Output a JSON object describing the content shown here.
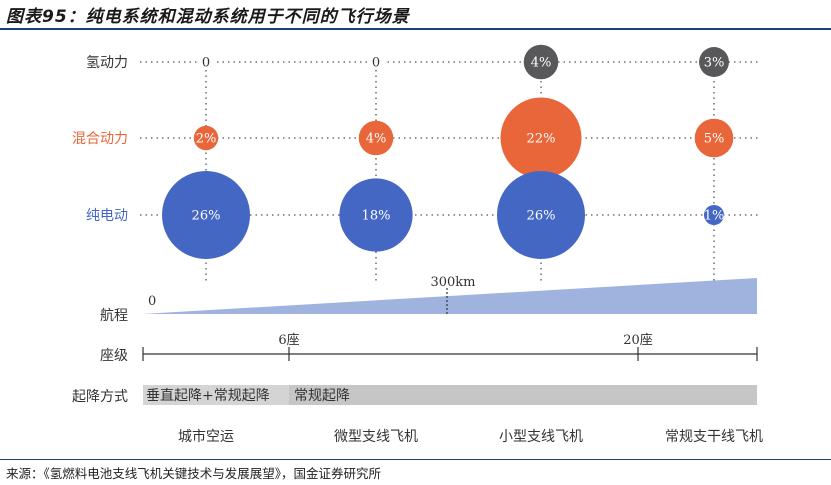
{
  "page": {
    "title": "图表95：纯电系统和混动系统用于不同的飞行场景",
    "source": "来源：《氢燃料电池支线飞机关键技术与发展展望》，国金证券研究所"
  },
  "chart_data": {
    "type": "bubble",
    "title": "图表95：纯电系统和混动系统用于不同的飞行场景",
    "categories": [
      "城市空运",
      "微型支线飞机",
      "小型支线飞机",
      "常规支干线飞机"
    ],
    "rows": [
      {
        "name": "氢动力",
        "color": "#58585a",
        "labelColor": "#333333",
        "values": [
          0,
          0,
          4,
          3
        ],
        "labels": [
          "0",
          "0",
          "4%",
          "3%"
        ]
      },
      {
        "name": "混合动力",
        "color": "#e8663a",
        "labelColor": "#e8663a",
        "values": [
          2,
          4,
          22,
          5
        ],
        "labels": [
          "2%",
          "4%",
          "22%",
          "5%"
        ]
      },
      {
        "name": "纯电动",
        "color": "#4467c4",
        "labelColor": "#4467c4",
        "values": [
          26,
          18,
          26,
          1
        ],
        "labels": [
          "26%",
          "18%",
          "26%",
          "1%"
        ]
      }
    ],
    "range": {
      "label": "航程",
      "start": "0",
      "mark": "300km",
      "color": "#9fb3de"
    },
    "seats": {
      "label": "座级",
      "ticks": [
        "6座",
        "20座"
      ]
    },
    "takeoff": {
      "label": "起降方式",
      "segments": [
        {
          "text": "垂直起降+常规起降",
          "color": "#d4d4d4"
        },
        {
          "text": "常规起降",
          "color": "#c6c6c6"
        }
      ]
    }
  }
}
